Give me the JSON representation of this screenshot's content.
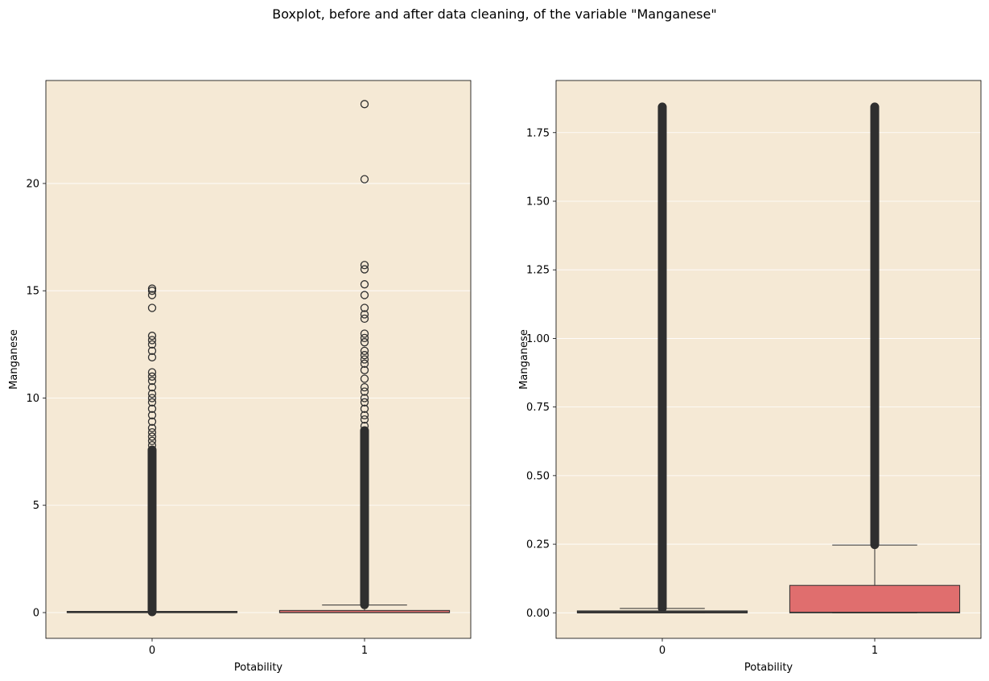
{
  "title": "Boxplot, before and after data cleaning, of the variable \"Manganese\"",
  "colors": {
    "background": "#f5e9d5",
    "box_potability_1": "#e06e6e",
    "box_potability_0": "#3a3a3a",
    "dark": "#2f2f2f",
    "grid": "#ffffff"
  },
  "chart_data": [
    {
      "type": "box",
      "subtitle": "before",
      "xlabel": "Potability",
      "ylabel": "Manganese",
      "categories": [
        "0",
        "1"
      ],
      "ylim": [
        -1.2,
        24.8
      ],
      "yticks": [
        0,
        5,
        10,
        15,
        20
      ],
      "ytick_labels": [
        "0",
        "5",
        "10",
        "15",
        "20"
      ],
      "grid": "horizontal",
      "boxes": [
        {
          "category": "0",
          "q1": 0.0,
          "median": 0.0,
          "q3": 0.0,
          "whisker_low": 0.0,
          "whisker_high": 0.0,
          "outlier_band": [
            0.02,
            7.6
          ],
          "outliers": [
            7.8,
            8.0,
            8.2,
            8.4,
            8.6,
            8.9,
            9.2,
            9.5,
            9.8,
            10.0,
            10.2,
            10.5,
            10.8,
            11.0,
            11.2,
            11.9,
            12.2,
            12.5,
            12.7,
            12.9,
            14.2,
            14.8,
            15.0,
            15.1
          ]
        },
        {
          "category": "1",
          "q1": 0.0,
          "median": 0.0,
          "q3": 0.1,
          "whisker_low": 0.0,
          "whisker_high": 0.35,
          "outlier_band": [
            0.35,
            8.5
          ],
          "outliers": [
            8.7,
            9.0,
            9.2,
            9.5,
            9.8,
            10.0,
            10.3,
            10.5,
            10.9,
            11.3,
            11.6,
            11.8,
            12.0,
            12.2,
            12.6,
            12.8,
            13.0,
            13.7,
            13.9,
            14.2,
            14.8,
            15.3,
            16.0,
            16.2,
            20.2,
            23.7
          ]
        }
      ]
    },
    {
      "type": "box",
      "subtitle": "after",
      "xlabel": "Potability",
      "ylabel": "Manganese",
      "categories": [
        "0",
        "1"
      ],
      "ylim": [
        -0.093,
        1.94
      ],
      "yticks": [
        0,
        0.25,
        0.5,
        0.75,
        1.0,
        1.25,
        1.5,
        1.75
      ],
      "ytick_labels": [
        "0.00",
        "0.25",
        "0.50",
        "0.75",
        "1.00",
        "1.25",
        "1.50",
        "1.75"
      ],
      "grid": "horizontal",
      "boxes": [
        {
          "category": "0",
          "q1": 0.0,
          "median": 0.0,
          "q3": 0.007,
          "whisker_low": 0.0,
          "whisker_high": 0.016,
          "outlier_band": [
            0.016,
            1.845
          ],
          "outliers": []
        },
        {
          "category": "1",
          "q1": 0.0,
          "median": 0.002,
          "q3": 0.1,
          "whisker_low": 0.0,
          "whisker_high": 0.247,
          "outlier_band": [
            0.247,
            1.845
          ],
          "outliers": []
        }
      ]
    }
  ]
}
